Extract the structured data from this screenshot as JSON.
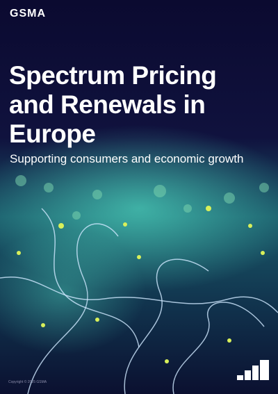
{
  "header": {
    "logo": "GSMA"
  },
  "cover": {
    "title_lines": [
      "Spectrum Pricing",
      "and Renewals in",
      "Europe"
    ],
    "subtitle": "Supporting consumers and economic growth"
  },
  "footer": {
    "copyright": "Copyright © 2025 GSMA"
  }
}
